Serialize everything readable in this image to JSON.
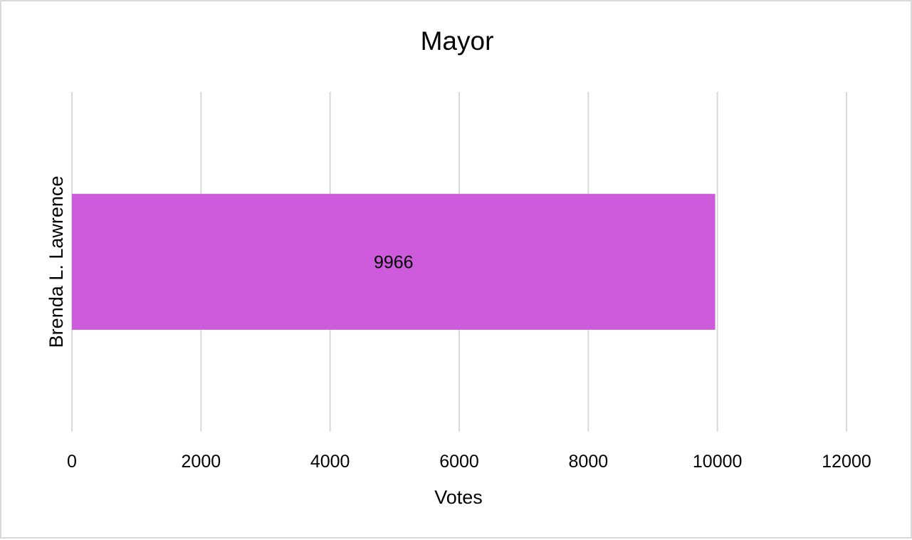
{
  "chart_data": {
    "type": "bar",
    "orientation": "horizontal",
    "title": "Mayor",
    "xlabel": "Votes",
    "ylabel": "",
    "categories": [
      "Brenda L. Lawrence"
    ],
    "values": [
      9966
    ],
    "data_labels": [
      "9966"
    ],
    "xlim": [
      0,
      12000
    ],
    "x_ticks": [
      "0",
      "2000",
      "4000",
      "6000",
      "8000",
      "10000",
      "12000"
    ],
    "grid": true,
    "legend": "none",
    "colors": {
      "bar": "#cd5bdb",
      "grid": "#d9d9d9",
      "border": "#d9d9d9"
    }
  }
}
